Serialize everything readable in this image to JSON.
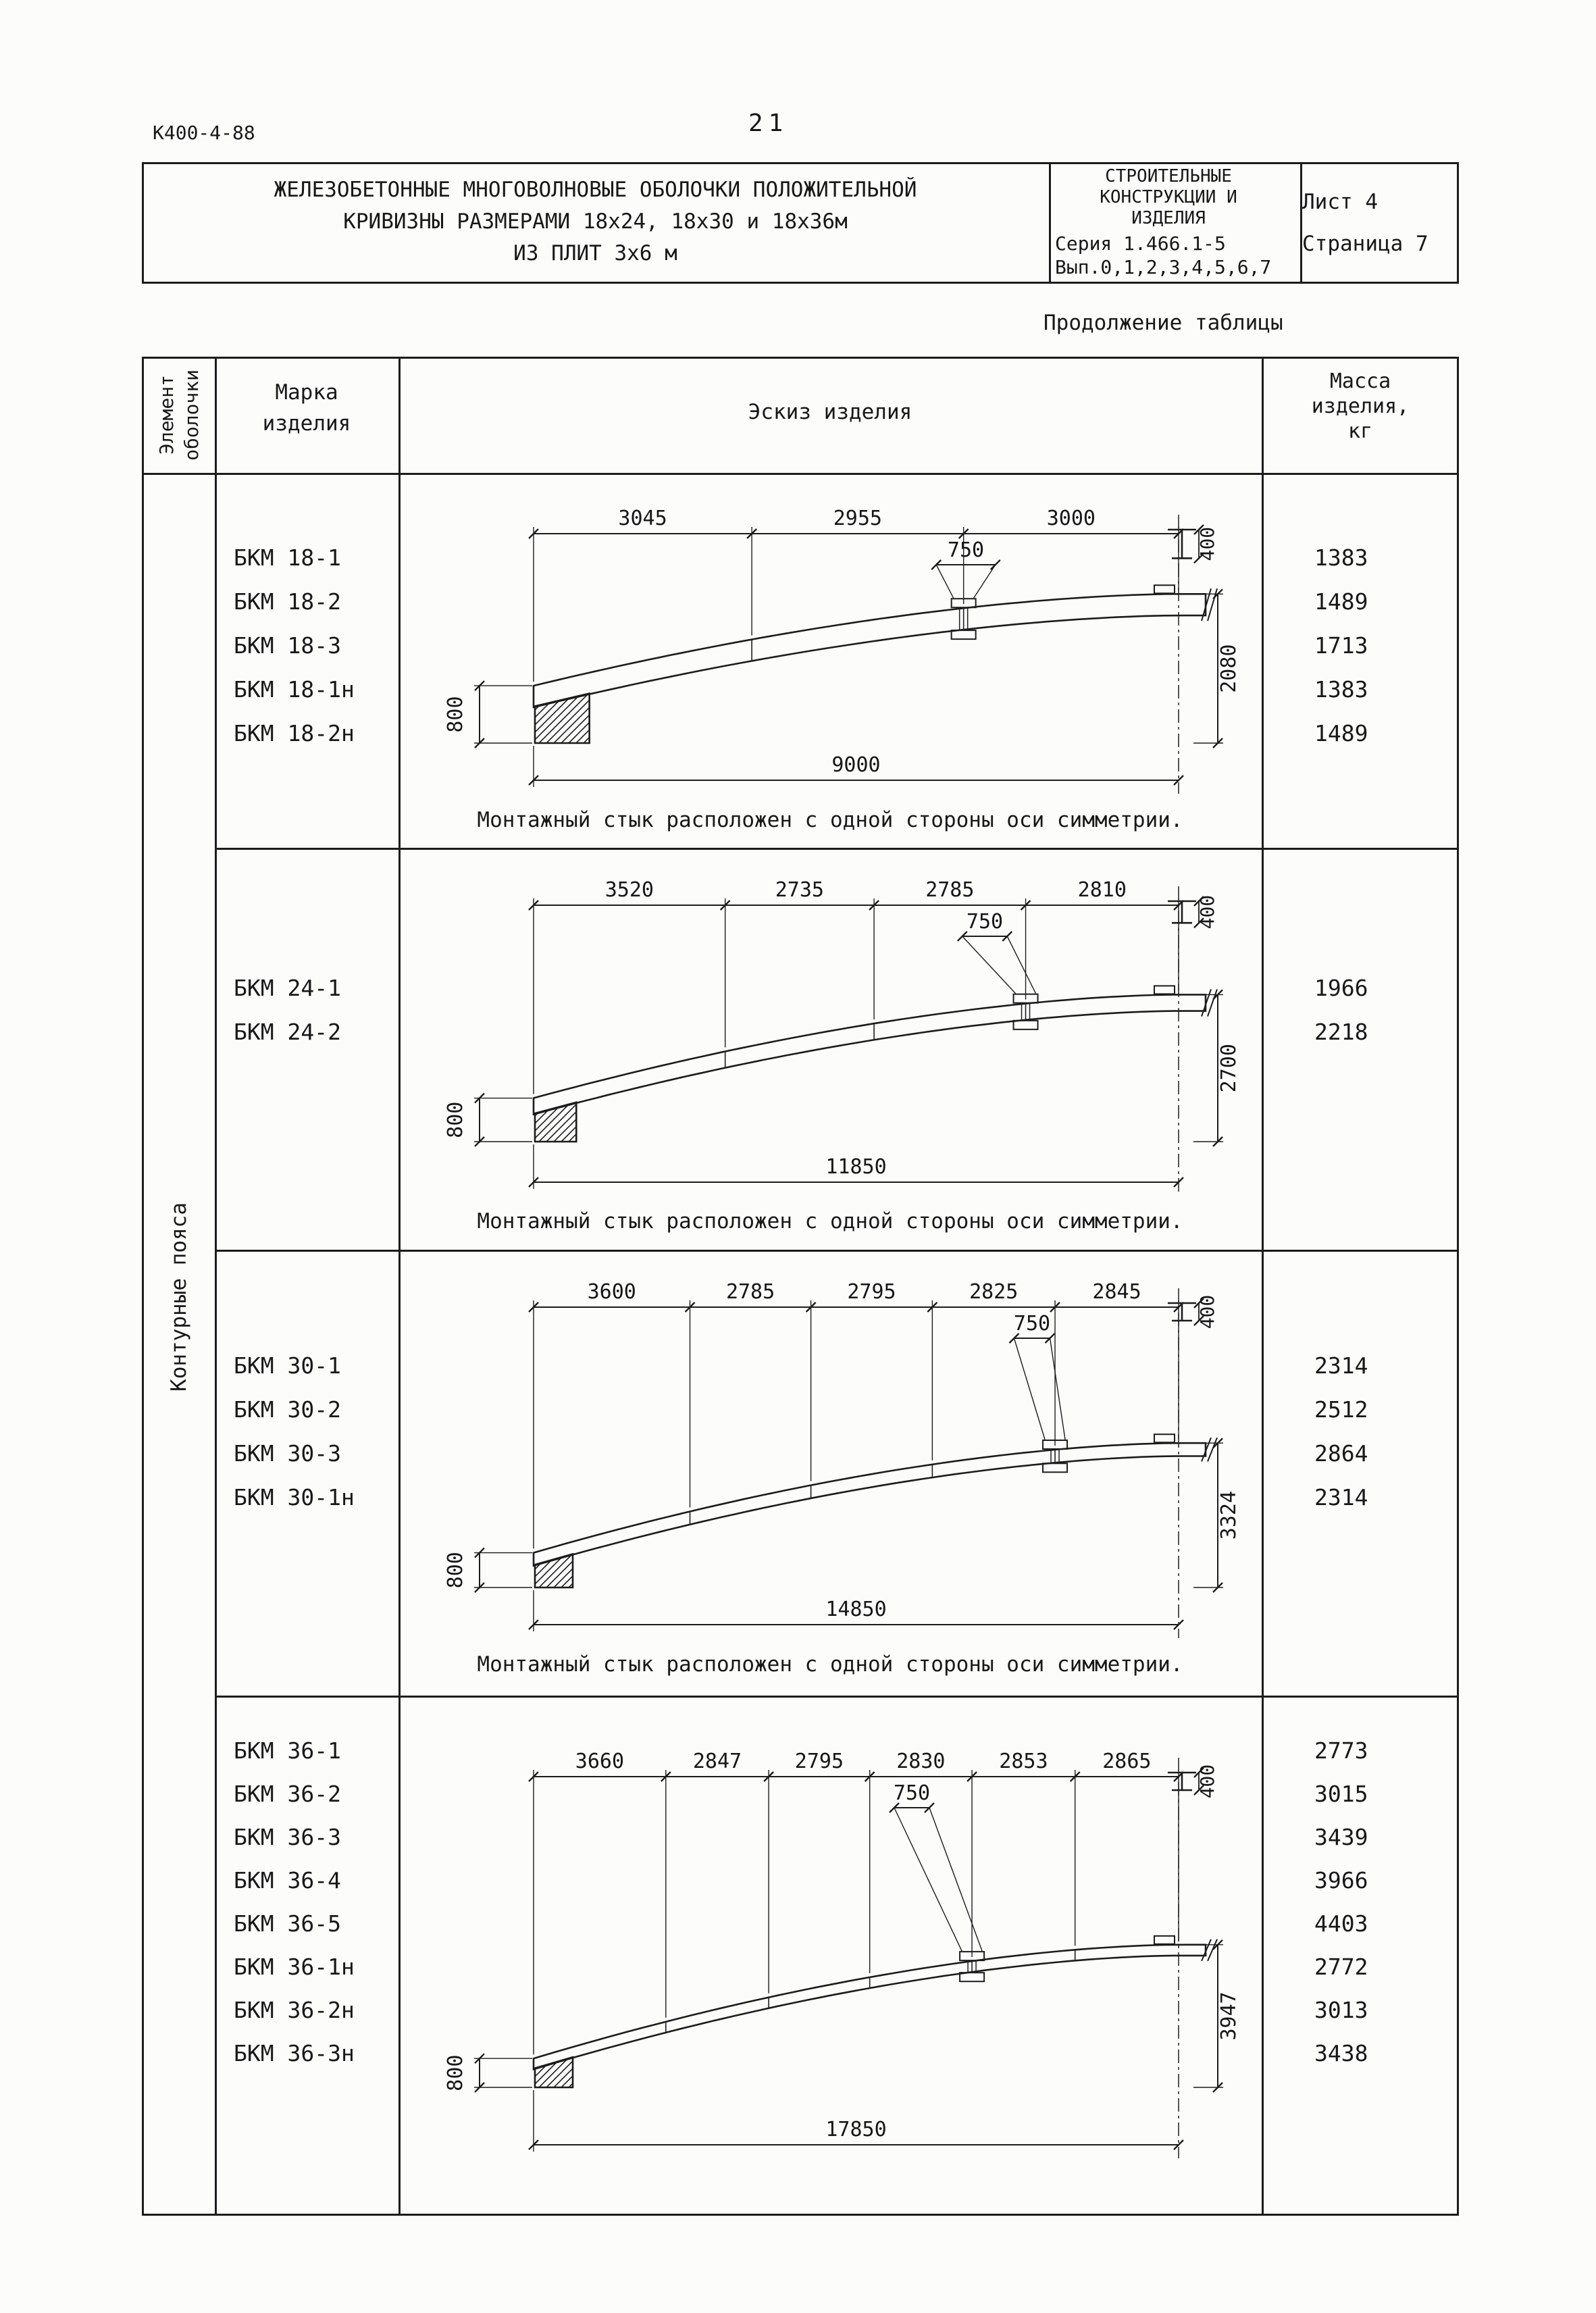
{
  "page": {
    "doc_code": "К400-4-88",
    "page_number": "21",
    "continuation": "Продолжение таблицы"
  },
  "header": {
    "title_lines": [
      "ЖЕЛЕЗОБЕТОННЫЕ МНОГОВОЛНОВЫЕ ОБОЛОЧКИ ПОЛОЖИТЕЛЬНОЙ",
      "КРИВИЗНЫ РАЗМЕРАМИ 18х24, 18х30 и 18х36м",
      "ИЗ ПЛИТ 3х6 м"
    ],
    "org_lines": [
      "СТРОИТЕЛЬНЫЕ",
      "КОНСТРУКЦИИ И",
      "ИЗДЕЛИЯ"
    ],
    "series": "Серия 1.466.1-5",
    "issue": "Вып.0,1,2,3,4,5,6,7",
    "sheet": "Лист 4",
    "page_label": "Страница 7"
  },
  "table": {
    "col_element_lines": [
      "Элемент",
      "оболочки"
    ],
    "col_mark_lines": [
      "Марка",
      "изделия"
    ],
    "col_sketch": "Эскиз изделия",
    "col_mass_lines": [
      "Масса",
      "изделия,",
      "кг"
    ],
    "element_group": "Контурные пояса"
  },
  "rows": [
    {
      "marks": [
        "БКМ 18-1",
        "БКМ 18-2",
        "БКМ 18-3",
        "БКМ 18-1н",
        "БКМ 18-2н"
      ],
      "masses": [
        "1383",
        "1489",
        "1713",
        "1383",
        "1489"
      ],
      "note": "Монтажный стык расположен с одной стороны оси симметрии.",
      "sketch": {
        "top_dims": [
          "3045",
          "2955",
          "3000"
        ],
        "splice_dim": "750",
        "section_height": "400",
        "left_height": "800",
        "right_height": "2080",
        "overall": "9000"
      }
    },
    {
      "marks": [
        "БКМ 24-1",
        "БКМ 24-2"
      ],
      "masses": [
        "1966",
        "2218"
      ],
      "note": "Монтажный стык расположен с одной стороны оси симметрии.",
      "sketch": {
        "top_dims": [
          "3520",
          "2735",
          "2785",
          "2810"
        ],
        "splice_dim": "750",
        "section_height": "400",
        "left_height": "800",
        "right_height": "2700",
        "overall": "11850"
      }
    },
    {
      "marks": [
        "БКМ 30-1",
        "БКМ 30-2",
        "БКМ 30-3",
        "БКМ 30-1н"
      ],
      "masses": [
        "2314",
        "2512",
        "2864",
        "2314"
      ],
      "note": "Монтажный стык расположен с одной стороны оси симметрии.",
      "sketch": {
        "top_dims": [
          "3600",
          "2785",
          "2795",
          "2825",
          "2845"
        ],
        "splice_dim": "750",
        "section_height": "400",
        "left_height": "800",
        "right_height": "3324",
        "overall": "14850"
      }
    },
    {
      "marks": [
        "БКМ 36-1",
        "БКМ 36-2",
        "БКМ 36-3",
        "БКМ 36-4",
        "БКМ 36-5",
        "БКМ 36-1н",
        "БКМ 36-2н",
        "БКМ 36-3н"
      ],
      "masses": [
        "2773",
        "3015",
        "3439",
        "3966",
        "4403",
        "2772",
        "3013",
        "3438"
      ],
      "note": "",
      "sketch": {
        "top_dims": [
          "3660",
          "2847",
          "2795",
          "2830",
          "2853",
          "2865"
        ],
        "splice_dim": "750",
        "section_height": "400",
        "left_height": "800",
        "right_height": "3947",
        "overall": "17850"
      }
    }
  ]
}
